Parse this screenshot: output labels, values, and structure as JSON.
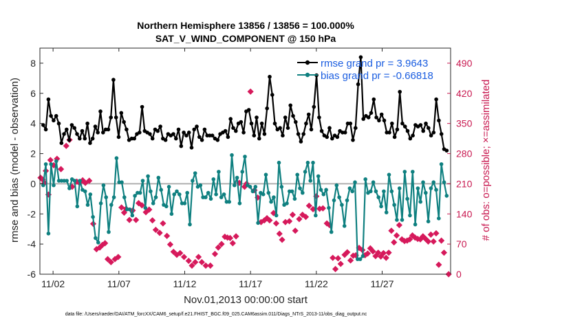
{
  "chart_data": {
    "type": "line",
    "title_line1": "Northern Hemisphere 13856 / 13856 = 100.000%",
    "title_line2": "SAT_V_WIND_COMPONENT @ 150 hPa",
    "xlabel": "Nov.01,2013 00:00:00 start",
    "ylabel": "rmse and bias (model - observation)",
    "ylabel_right": "# of obs: o=possible; ×=assimilated",
    "xlim": [
      0.5,
      31.7
    ],
    "ylim": [
      -6,
      9
    ],
    "ylim_right": [
      0,
      525
    ],
    "x_ticks": [
      1.5,
      6.5,
      11.5,
      16.5,
      21.5,
      26.5
    ],
    "x_tick_labels": [
      "11/02",
      "11/07",
      "11/12",
      "11/17",
      "11/22",
      "11/27"
    ],
    "y_ticks": [
      -6,
      -4,
      -2,
      0,
      2,
      4,
      6,
      8
    ],
    "y_tick_labels": [
      "-6",
      "-4",
      "-2",
      "0",
      "2",
      "4",
      "6",
      "8"
    ],
    "y_ticks_right": [
      0,
      70,
      140,
      210,
      280,
      350,
      420,
      490
    ],
    "y_tick_labels_right": [
      "0",
      "70",
      "140",
      "210",
      "280",
      "350",
      "420",
      "490"
    ],
    "colors": {
      "rmse": "#000000",
      "bias": "#0f8080",
      "obs": "#d6195b",
      "zero_line": "#b0b0b0",
      "legend_text": "#1a5de0",
      "right_axis": "#c8174f"
    },
    "series": [
      {
        "name": "rmse",
        "legend": "rmse grand pr = 3.9643",
        "values": [
          3.9,
          3.6,
          5.6,
          4.5,
          4.2,
          4.5,
          4.0,
          2.7,
          3.3,
          3.6,
          2.9,
          3.9,
          3.7,
          3.3,
          3.0,
          3.5,
          3.0,
          4.0,
          2.7,
          3.0,
          3.8,
          3.4,
          4.8,
          3.4,
          3.6,
          3.6,
          4.4,
          6.9,
          4.4,
          3.1,
          4.7,
          4.1,
          3.6,
          2.9,
          3.0,
          3.0,
          3.3,
          3.4,
          5.1,
          3.5,
          3.4,
          3.3,
          3.0,
          3.6,
          3.5,
          3.8,
          3.0,
          2.9,
          3.3,
          3.2,
          3.3,
          3.0,
          3.6,
          2.5,
          3.4,
          3.2,
          3.4,
          2.4,
          3.6,
          3.8,
          3.1,
          2.9,
          3.6,
          3.2,
          3.2,
          3.2,
          3.0,
          2.9,
          3.3,
          3.4,
          3.5,
          3.1,
          4.3,
          3.7,
          3.5,
          4.0,
          4.1,
          3.4,
          4.8,
          4.9,
          4.0,
          3.2,
          4.4,
          3.0,
          4.0,
          3.3,
          5.0,
          7.1,
          5.9,
          4.0,
          3.6,
          3.7,
          3.2,
          4.4,
          3.7,
          5.2,
          4.5,
          4.1,
          3.3,
          2.8,
          3.3,
          4.0,
          4.6,
          3.6,
          5.1,
          7.2,
          4.4,
          3.5,
          3.2,
          3.1,
          3.7,
          3.0,
          3.2,
          3.1,
          3.5,
          3.4,
          3.4,
          4.0,
          4.0,
          2.9,
          3.7,
          6.6,
          8.4,
          4.3,
          4.5,
          4.4,
          4.7,
          5.6,
          4.4,
          4.2,
          4.6,
          4.2,
          3.4,
          3.4,
          4.0,
          3.1,
          3.6,
          6.1,
          4.0,
          3.8,
          3.5,
          3.0,
          3.2,
          3.9,
          3.8,
          3.9,
          3.5,
          4.0,
          3.7,
          3.2,
          3.4,
          5.6,
          4.2,
          3.3,
          2.3,
          2.2
        ]
      },
      {
        "name": "bias",
        "legend": "bias grand pr = -0.66818",
        "values": [
          -0.1,
          1.3,
          -3.3,
          1.3,
          -0.1,
          1.5,
          0.2,
          0.2,
          0.2,
          0.2,
          -0.3,
          0.3,
          0.2,
          -1.5,
          0.2,
          -0.4,
          -0.5,
          -1.4,
          -0.7,
          -2.2,
          -3.6,
          -3.9,
          -1.3,
          -0.1,
          -0.9,
          -3.2,
          -1.4,
          -0.9,
          1.7,
          0.1,
          0.1,
          -0.9,
          -1.7,
          -1.7,
          -2.1,
          -0.8,
          -0.6,
          -0.6,
          0.2,
          -1.6,
          0.5,
          -0.5,
          -1.3,
          -0.9,
          0.4,
          -0.4,
          -1.4,
          -1.5,
          -0.2,
          -2.0,
          -0.7,
          -0.5,
          -0.7,
          -1.3,
          -1.3,
          -0.6,
          -2.7,
          0.2,
          0.7,
          -0.2,
          -0.1,
          -0.9,
          -0.9,
          -0.6,
          -1.0,
          0.3,
          -0.7,
          0.8,
          -0.9,
          -0.7,
          -1.2,
          -1.2,
          1.9,
          -0.1,
          0.4,
          -1.3,
          0.8,
          1.8,
          -0.1,
          -0.2,
          -0.5,
          -0.2,
          -2.6,
          -0.6,
          -0.7,
          0.6,
          -0.6,
          -1.2,
          -0.9,
          -2.1,
          1.4,
          -0.2,
          -1.4,
          -1.3,
          -0.5,
          -0.5,
          -1.0,
          0.6,
          -0.3,
          -0.6,
          0.8,
          1.4,
          0.2,
          1.4,
          -2.1,
          0.5,
          -0.4,
          -0.7,
          -0.4,
          -1.6,
          -3.2,
          -1.1,
          -0.1,
          -0.9,
          -1.4,
          -2.8,
          -1.1,
          -0.3,
          -0.5,
          0.1,
          -5.0,
          -5.0,
          -4.8,
          0.3,
          -0.6,
          -0.5,
          0.1,
          -0.5,
          -0.9,
          -1.5,
          -0.5,
          -1.9,
          0.6,
          -0.5,
          -1.4,
          -2.4,
          -0.3,
          -2.4,
          0.8,
          -1.0,
          -2.1,
          0.8,
          -2.7,
          -0.3,
          -1.2,
          0.1,
          -0.6,
          -2.5,
          -0.3,
          0.1,
          -0.4,
          -2.3,
          1.3,
          0.1,
          -0.8
        ]
      }
    ],
    "obs_assimilated": [
      [
        0.55,
        224
      ],
      [
        0.7,
        220
      ],
      [
        0.85,
        212
      ],
      [
        0.95,
        240
      ],
      [
        1.15,
        185
      ],
      [
        1.3,
        265
      ],
      [
        1.55,
        253
      ],
      [
        1.8,
        268
      ],
      [
        2.1,
        244
      ],
      [
        2.5,
        298
      ],
      [
        2.75,
        312
      ],
      [
        2.95,
        203
      ],
      [
        3.3,
        215
      ],
      [
        3.5,
        212
      ],
      [
        3.75,
        218
      ],
      [
        3.95,
        212
      ],
      [
        4.25,
        217
      ],
      [
        4.55,
        117
      ],
      [
        4.8,
        58
      ],
      [
        5.05,
        62
      ],
      [
        5.25,
        68
      ],
      [
        5.45,
        72
      ],
      [
        5.65,
        35
      ],
      [
        5.9,
        28
      ],
      [
        6.2,
        35
      ],
      [
        6.45,
        40
      ],
      [
        6.7,
        155
      ],
      [
        6.9,
        143
      ],
      [
        7.05,
        152
      ],
      [
        7.3,
        126
      ],
      [
        7.55,
        148
      ],
      [
        7.8,
        126
      ],
      [
        8.0,
        165
      ],
      [
        8.25,
        160
      ],
      [
        8.55,
        144
      ],
      [
        8.8,
        150
      ],
      [
        9.05,
        125
      ],
      [
        9.3,
        103
      ],
      [
        9.6,
        96
      ],
      [
        9.85,
        118
      ],
      [
        10.15,
        89
      ],
      [
        10.4,
        69
      ],
      [
        10.65,
        52
      ],
      [
        10.9,
        45
      ],
      [
        11.15,
        49
      ],
      [
        11.45,
        40
      ],
      [
        11.8,
        31
      ],
      [
        12.05,
        20
      ],
      [
        12.3,
        28
      ],
      [
        12.55,
        40
      ],
      [
        12.8,
        28
      ],
      [
        13.1,
        20
      ],
      [
        13.45,
        20
      ],
      [
        13.8,
        47
      ],
      [
        14.05,
        62
      ],
      [
        14.3,
        70
      ],
      [
        14.55,
        87
      ],
      [
        14.75,
        85
      ],
      [
        14.95,
        84
      ],
      [
        15.15,
        72
      ],
      [
        15.4,
        88
      ],
      [
        15.65,
        212
      ],
      [
        16.05,
        203
      ],
      [
        16.2,
        210
      ],
      [
        16.5,
        424
      ],
      [
        16.8,
        195
      ],
      [
        17.05,
        178
      ],
      [
        17.3,
        121
      ],
      [
        17.55,
        125
      ],
      [
        17.75,
        130
      ],
      [
        17.95,
        125
      ],
      [
        18.25,
        142
      ],
      [
        18.45,
        118
      ],
      [
        18.7,
        94
      ],
      [
        18.9,
        80
      ],
      [
        19.15,
        121
      ],
      [
        19.45,
        123
      ],
      [
        19.7,
        138
      ],
      [
        19.9,
        101
      ],
      [
        20.2,
        128
      ],
      [
        20.45,
        138
      ],
      [
        20.7,
        133
      ],
      [
        20.95,
        159
      ],
      [
        21.25,
        151
      ],
      [
        21.5,
        181
      ],
      [
        21.75,
        152
      ],
      [
        22.0,
        153
      ],
      [
        22.3,
        118
      ],
      [
        22.5,
        114
      ],
      [
        22.75,
        38
      ],
      [
        22.95,
        12
      ],
      [
        23.15,
        37
      ],
      [
        23.35,
        24
      ],
      [
        23.65,
        45
      ],
      [
        23.85,
        51
      ],
      [
        24.1,
        32
      ],
      [
        24.3,
        43
      ],
      [
        24.5,
        44
      ],
      [
        24.75,
        61
      ],
      [
        25.0,
        56
      ],
      [
        25.2,
        44
      ],
      [
        25.4,
        48
      ],
      [
        25.6,
        60
      ],
      [
        25.8,
        53
      ],
      [
        26.0,
        42
      ],
      [
        26.2,
        50
      ],
      [
        26.4,
        41
      ],
      [
        26.6,
        49
      ],
      [
        26.8,
        38
      ],
      [
        27.0,
        50
      ],
      [
        27.2,
        101
      ],
      [
        27.4,
        74
      ],
      [
        27.6,
        90
      ],
      [
        27.8,
        114
      ],
      [
        28.0,
        81
      ],
      [
        28.2,
        77
      ],
      [
        28.4,
        78
      ],
      [
        28.6,
        81
      ],
      [
        28.8,
        90
      ],
      [
        29.0,
        85
      ],
      [
        29.2,
        82
      ],
      [
        29.4,
        81
      ],
      [
        29.6,
        88
      ],
      [
        29.8,
        82
      ],
      [
        30.0,
        76
      ],
      [
        30.2,
        92
      ],
      [
        30.4,
        76
      ],
      [
        30.6,
        95
      ],
      [
        30.8,
        22
      ],
      [
        31.0,
        78
      ],
      [
        31.2,
        50
      ],
      [
        31.55,
        0
      ]
    ],
    "footer": "data file: /Users/raeder/DAI/ATM_forcXX/CAM6_setup/f.e21.FHIST_BGC.f09_025.CAM6assim.011/Diags_NTrS_2013-11/obs_diag_output.nc"
  }
}
